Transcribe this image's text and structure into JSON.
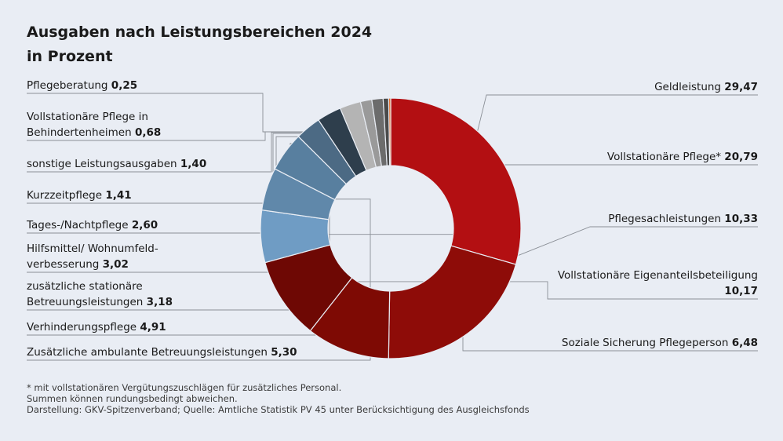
{
  "title": {
    "line1": "Ausgaben nach Leistungsbereichen 2024",
    "line2": "in Prozent"
  },
  "chart_data": {
    "type": "pie",
    "variant": "donut",
    "unit": "%",
    "slices": [
      {
        "label": "Geldleistung",
        "value": 29.47,
        "display": "29,47",
        "color": "#b30f12"
      },
      {
        "label": "Vollstationäre Pflege*",
        "value": 20.79,
        "display": "20,79",
        "color": "#8e0c08"
      },
      {
        "label": "Pflegesachleistungen",
        "value": 10.33,
        "display": "10,33",
        "color": "#7e0a04"
      },
      {
        "label": "Vollstationäre Eigenanteilsbeteiligung",
        "value": 10.17,
        "display": "10,17",
        "color": "#6e0804"
      },
      {
        "label": "Soziale Sicherung Pflegeperson",
        "value": 6.48,
        "display": "6,48",
        "color": "#6f9cc4"
      },
      {
        "label": "Zusätzliche ambulante Betreuungsleistungen",
        "value": 5.3,
        "display": "5,30",
        "color": "#6088aa"
      },
      {
        "label": "Verhinderungspflege",
        "value": 4.91,
        "display": "4,91",
        "color": "#587f9f"
      },
      {
        "label": "zusätzliche stationäre Betreuungsleistungen",
        "value": 3.18,
        "display": "3,18",
        "color": "#4c6a84"
      },
      {
        "label": "Hilfsmittel/ Wohnumfeld-verbesserung",
        "value": 3.02,
        "display": "3,02",
        "color": "#2e3e4c"
      },
      {
        "label": "Tages-/Nachtpflege",
        "value": 2.6,
        "display": "2,60",
        "color": "#b4b4b4"
      },
      {
        "label": "Kurzzeitpflege",
        "value": 1.41,
        "display": "1,41",
        "color": "#9a9a9a"
      },
      {
        "label": "sonstige Leistungsausgaben",
        "value": 1.4,
        "display": "1,40",
        "color": "#6c6c6c"
      },
      {
        "label": "Vollstationäre Pflege in Behindertenheimen",
        "value": 0.68,
        "display": "0,68",
        "color": "#4a4a4a"
      },
      {
        "label": "Pflegeberatung",
        "value": 0.25,
        "display": "0,25",
        "color": "#e86b24"
      }
    ]
  },
  "footer": {
    "note": " * mit vollstationären Vergütungszuschlägen für zusätzliches Personal.",
    "rounding": "Summen können rundungsbedingt abweichen.",
    "source": "Darstellung: GKV-Spitzenverband; Quelle: Amtliche Statistik PV 45 unter Berücksichtigung des Ausgleichsfonds"
  }
}
